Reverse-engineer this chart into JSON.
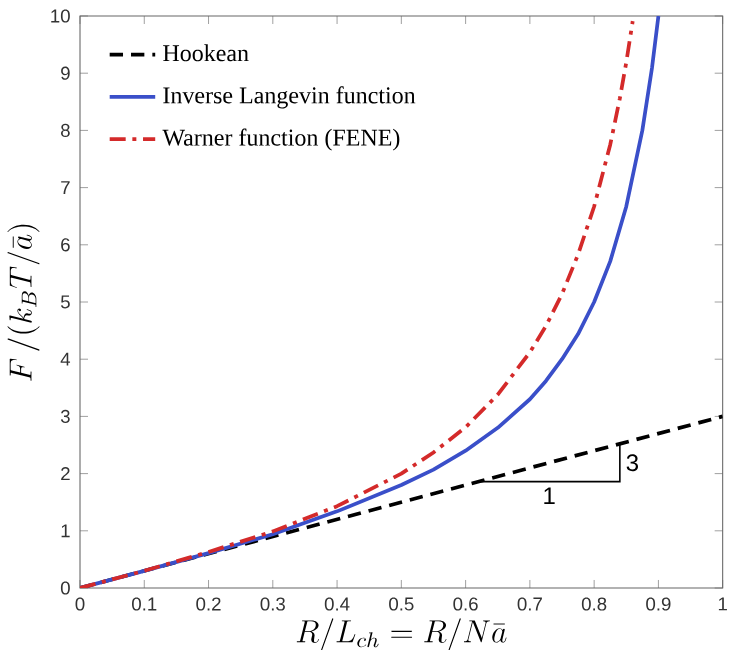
{
  "chart_data": {
    "type": "line",
    "xlabel": "R/L_{ch} = R/N\\bar{a}",
    "ylabel": "F\\,/(k_BT/\\bar{a})",
    "xlim": [
      0,
      1
    ],
    "ylim": [
      0,
      10
    ],
    "xticks": [
      0,
      0.1,
      0.2,
      0.3,
      0.4,
      0.5,
      0.6,
      0.7,
      0.8,
      0.9,
      1
    ],
    "yticks": [
      0,
      1,
      2,
      3,
      4,
      5,
      6,
      7,
      8,
      9,
      10
    ],
    "legend": "top left",
    "series": [
      {
        "name": "Hookean",
        "color": "#000000",
        "line_style": "dashed",
        "x": [
          0,
          1
        ],
        "values": [
          0,
          3
        ]
      },
      {
        "name": "Inverse Langevin function",
        "color": "#3a4fc9",
        "line_style": "solid",
        "x": [
          0,
          0.1,
          0.2,
          0.3,
          0.4,
          0.5,
          0.55,
          0.6,
          0.65,
          0.7,
          0.725,
          0.75,
          0.775,
          0.8,
          0.825,
          0.85,
          0.875,
          0.89,
          0.9
        ],
        "values": [
          0,
          0.3,
          0.61,
          0.94,
          1.34,
          1.8,
          2.07,
          2.4,
          2.8,
          3.3,
          3.62,
          4.0,
          4.44,
          5.0,
          5.71,
          6.67,
          8.0,
          9.09,
          10.0
        ]
      },
      {
        "name": "Warner function (FENE)",
        "color": "#d42a2a",
        "line_style": "dashdot",
        "x": [
          0,
          0.1,
          0.2,
          0.3,
          0.4,
          0.5,
          0.55,
          0.6,
          0.65,
          0.7,
          0.725,
          0.75,
          0.775,
          0.8,
          0.825,
          0.84,
          0.85,
          0.86
        ],
        "values": [
          0,
          0.3,
          0.63,
          0.99,
          1.43,
          2.0,
          2.37,
          2.81,
          3.38,
          4.12,
          4.58,
          5.14,
          5.83,
          6.67,
          7.75,
          8.56,
          9.19,
          9.91
        ]
      }
    ],
    "annotations": [
      {
        "text": "1",
        "x": 0.62,
        "y": 1.86
      },
      {
        "text": "3",
        "x": 0.84,
        "y": 2.52
      }
    ]
  }
}
